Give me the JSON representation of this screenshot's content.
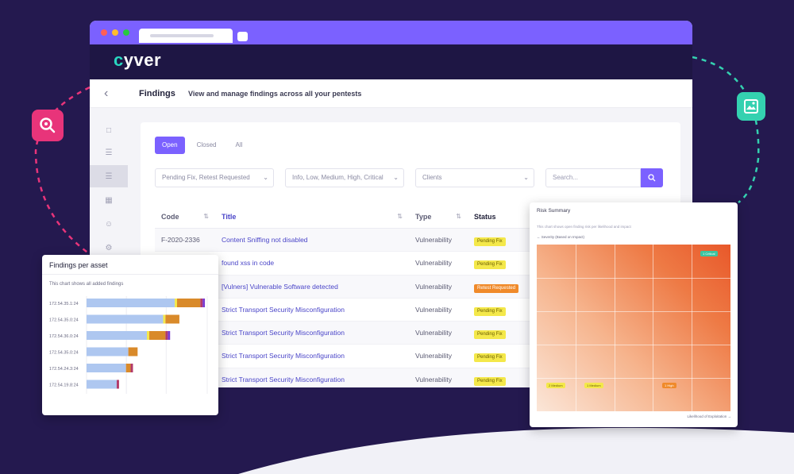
{
  "app": {
    "logo": "cyver",
    "logo_accent": "c",
    "logo_rest": "yver"
  },
  "header": {
    "title": "Findings",
    "subtitle": "View and manage findings across all your pentests"
  },
  "tabs": [
    {
      "label": "Open",
      "active": true
    },
    {
      "label": "Closed",
      "active": false
    },
    {
      "label": "All",
      "active": false
    }
  ],
  "filters": {
    "status": "Pending Fix, Retest Requested",
    "severity": "Info, Low, Medium, High, Critical",
    "clients": "Clients",
    "search_placeholder": "Search..."
  },
  "table": {
    "columns": [
      "Code",
      "Title",
      "Type",
      "Status"
    ],
    "rows": [
      {
        "code": "F-2020-2336",
        "title": "Content Sniffing not disabled",
        "type": "Vulnerability",
        "status": "Pending Fix",
        "status_color": "yellow"
      },
      {
        "code": "",
        "title": "found xss in code",
        "type": "Vulnerability",
        "status": "Pending Fix",
        "status_color": "yellow"
      },
      {
        "code": "",
        "title": "[Vulners] Vulnerable Software detected",
        "type": "Vulnerability",
        "status": "Retest Requested",
        "status_color": "orange"
      },
      {
        "code": "",
        "title": "Strict Transport Security Misconfiguration",
        "type": "Vulnerability",
        "status": "Pending Fix",
        "status_color": "yellow"
      },
      {
        "code": "",
        "title": "Strict Transport Security Misconfiguration",
        "type": "Vulnerability",
        "status": "Pending Fix",
        "status_color": "yellow"
      },
      {
        "code": "",
        "title": "Strict Transport Security Misconfiguration",
        "type": "Vulnerability",
        "status": "Pending Fix",
        "status_color": "yellow"
      },
      {
        "code": "",
        "title": "Strict Transport Security Misconfiguration",
        "type": "Vulnerability",
        "status": "Pending Fix",
        "status_color": "yellow"
      }
    ]
  },
  "asset_card": {
    "title": "Findings per asset",
    "description": "This chart shows all added findings"
  },
  "chart_data": {
    "type": "bar",
    "orientation": "horizontal",
    "stacked": true,
    "categories": [
      "172.54.35.1:24",
      "172.54.35.0:24",
      "172.54.36.0:24",
      "172.54.35.0:24",
      "172.54.24.3:24",
      "172.54.19.8:24"
    ],
    "series": [
      {
        "color": "#aec7f0",
        "values": [
          38,
          33,
          26,
          18,
          17,
          13
        ]
      },
      {
        "color": "#f4e84a",
        "values": [
          1,
          1,
          1,
          0,
          0,
          0
        ]
      },
      {
        "color": "#d98a2a",
        "values": [
          10,
          6,
          7,
          4,
          2,
          0
        ]
      },
      {
        "color": "#b23a6a",
        "values": [
          1,
          0,
          1,
          0,
          1,
          1
        ]
      },
      {
        "color": "#7a3ad0",
        "values": [
          1,
          0,
          1,
          0,
          0,
          0
        ]
      }
    ],
    "xlim": [
      0,
      52
    ]
  },
  "risk_card": {
    "title": "Risk Summary",
    "description": "This chart shows open finding risk per likelihood and impact",
    "axis_label": "Severity (Based on Impact)",
    "footer": "Likelihood of Exploitation",
    "badges": [
      {
        "label": "1 Critical",
        "color": "green"
      },
      {
        "label": "2 Medium",
        "color": "yellow"
      },
      {
        "label": "1 Medium",
        "color": "yellow"
      },
      {
        "label": "1 High",
        "color": "orange"
      }
    ]
  },
  "colors": {
    "accent": "#7b61ff",
    "background": "#24194f",
    "teal": "#34d1b0",
    "pink": "#e8347a"
  }
}
